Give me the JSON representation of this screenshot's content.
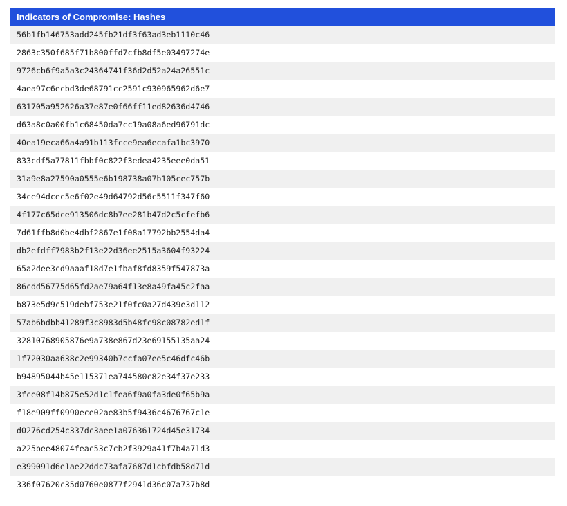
{
  "header": {
    "title": "Indicators of Compromise: Hashes"
  },
  "hashes": [
    "56b1fb146753add245fb21df3f63ad3eb1110c46",
    "2863c350f685f71b800ffd7cfb8df5e03497274e",
    "9726cb6f9a5a3c24364741f36d2d52a24a26551c",
    "4aea97c6ecbd3de68791cc2591c930965962d6e7",
    "631705a952626a37e87e0f66ff11ed82636d4746",
    "d63a8c0a00fb1c68450da7cc19a08a6ed96791dc",
    "40ea19eca66a4a91b113fcce9ea6ecafa1bc3970",
    "833cdf5a77811fbbf0c822f3edea4235eee0da51",
    "31a9e8a27590a0555e6b198738a07b105cec757b",
    "34ce94dcec5e6f02e49d64792d56c5511f347f60",
    "4f177c65dce913506dc8b7ee281b47d2c5cfefb6",
    "7d61ffb8d0be4dbf2867e1f08a17792bb2554da4",
    "db2efdff7983b2f13e22d36ee2515a3604f93224",
    "65a2dee3cd9aaaf18d7e1fbaf8fd8359f547873a",
    "86cdd56775d65fd2ae79a64f13e8a49fa45c2faa",
    "b873e5d9c519debf753e21f0fc0a27d439e3d112",
    "57ab6bdbb41289f3c8983d5b48fc98c08782ed1f",
    "32810768905876e9a738e867d23e69155135aa24",
    "1f72030aa638c2e99340b7ccfa07ee5c46dfc46b",
    "b94895044b45e115371ea744580c82e34f37e233",
    "3fce08f14b875e52d1c1fea6f9a0fa3de0f65b9a",
    "f18e909ff0990ece02ae83b5f9436c4676767c1e",
    "d0276cd254c337dc3aee1a076361724d45e31734",
    "a225bee48074feac53c7cb2f3929a41f7b4a71d3",
    "e399091d6e1ae22ddc73afa7687d1cbfdb58d71d",
    "336f07620c35d0760e0877f2941d36c07a737b8d"
  ],
  "colors": {
    "header_bg": "#2150dc",
    "row_alt": "#f0f0f0",
    "border": "#9fb0dd"
  }
}
